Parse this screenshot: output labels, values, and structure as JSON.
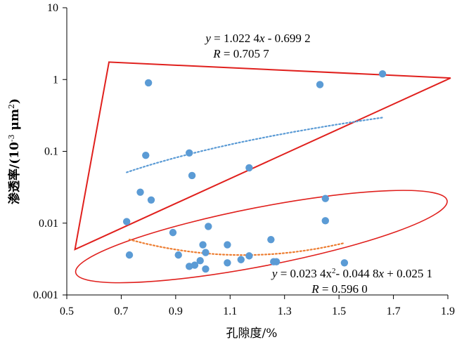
{
  "chart_data": {
    "type": "scatter",
    "xlabel": "孔隙度/%",
    "ylabel_parts": [
      "渗透率/(10",
      "-3",
      " μm",
      "2",
      ")"
    ],
    "xlim": [
      0.5,
      1.9
    ],
    "ylim": [
      0.001,
      10
    ],
    "y_scale": "log",
    "x_ticks": [
      "0.5",
      "0.7",
      "0.9",
      "1.1",
      "1.3",
      "1.5",
      "1.7",
      "1.9"
    ],
    "y_ticks": [
      "0.001",
      "0.01",
      "0.1",
      "1",
      "10"
    ],
    "x_tick_values": [
      0.5,
      0.7,
      0.9,
      1.1,
      1.3,
      1.5,
      1.7,
      1.9
    ],
    "y_tick_values": [
      0.001,
      0.01,
      0.1,
      1,
      10
    ],
    "point_color": "#5b9bd5",
    "points": [
      [
        0.8,
        0.9
      ],
      [
        1.43,
        0.85
      ],
      [
        1.66,
        1.2
      ],
      [
        0.79,
        0.088
      ],
      [
        0.95,
        0.095
      ],
      [
        0.96,
        0.046
      ],
      [
        1.17,
        0.059
      ],
      [
        0.77,
        0.027
      ],
      [
        0.81,
        0.021
      ],
      [
        0.72,
        0.0105
      ],
      [
        0.89,
        0.0074
      ],
      [
        1.02,
        0.009
      ],
      [
        1.45,
        0.022
      ],
      [
        1.45,
        0.0108
      ],
      [
        0.73,
        0.0036
      ],
      [
        0.91,
        0.0036
      ],
      [
        0.95,
        0.0025
      ],
      [
        0.97,
        0.0026
      ],
      [
        0.99,
        0.003
      ],
      [
        1.0,
        0.005
      ],
      [
        1.01,
        0.0039
      ],
      [
        1.01,
        0.0023
      ],
      [
        1.09,
        0.005
      ],
      [
        1.09,
        0.0028
      ],
      [
        1.14,
        0.0031
      ],
      [
        1.17,
        0.0035
      ],
      [
        1.25,
        0.0059
      ],
      [
        1.26,
        0.0029
      ],
      [
        1.27,
        0.0029
      ],
      [
        1.52,
        0.0028
      ]
    ],
    "trendlines": [
      {
        "name": "upper",
        "color": "#5b9bd5",
        "x_range": [
          0.72,
          1.66
        ],
        "equation_parts": [
          "y",
          " = 1.022 4",
          "x",
          " - 0.699 2"
        ],
        "r_parts": [
          "R",
          " = 0.705 7"
        ]
      },
      {
        "name": "lower",
        "color": "#ed7d31",
        "x_range": [
          0.73,
          1.52
        ],
        "equation_parts": [
          "y",
          " = 0.023 4",
          "x",
          "2",
          "- 0.044 8",
          "x",
          " + 0.025 1"
        ],
        "r_parts": [
          "R",
          " = 0.596 0"
        ]
      }
    ],
    "region_color": "#e0201d",
    "triangle": [
      [
        0.53,
        0.0043
      ],
      [
        0.655,
        1.75
      ],
      [
        1.91,
        1.05
      ]
    ],
    "ellipse": {
      "center": [
        1.215,
        0.0065
      ],
      "x_radius": 0.695,
      "decades_radius": 0.9,
      "rotation_deg": -11
    },
    "grid": false,
    "legend": "none"
  }
}
